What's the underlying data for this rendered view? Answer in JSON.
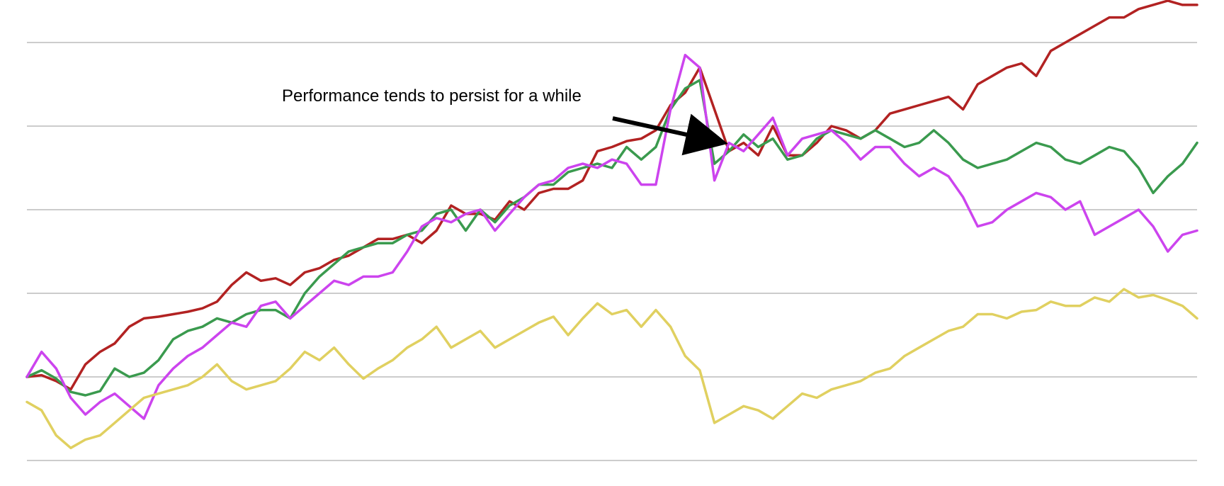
{
  "chart_data": {
    "type": "line",
    "title": "",
    "xlabel": "",
    "ylabel": "",
    "x": [
      0,
      10,
      20,
      30,
      40,
      50,
      60,
      70,
      80,
      90,
      100,
      110,
      120,
      130,
      140,
      150,
      160,
      170,
      180,
      190,
      200,
      210,
      220,
      230,
      240,
      250,
      260,
      270,
      280,
      290,
      300,
      310,
      320,
      330,
      340,
      350,
      360,
      370,
      380,
      390,
      400,
      410,
      420,
      430,
      440,
      450,
      460,
      470,
      480,
      490,
      500,
      510,
      520,
      530,
      540,
      550,
      560,
      570,
      580,
      590,
      600,
      610,
      620,
      630,
      640,
      650,
      660,
      670,
      680,
      690,
      700,
      710,
      720,
      730,
      740,
      750,
      760,
      770,
      780,
      790,
      800
    ],
    "ylim": [
      0,
      5
    ],
    "grid": true,
    "gridlines": [
      0,
      1,
      2,
      3,
      4,
      5
    ],
    "series": [
      {
        "color": "#b22222",
        "values": [
          1.0,
          1.02,
          0.95,
          0.85,
          1.15,
          1.3,
          1.4,
          1.6,
          1.7,
          1.72,
          1.75,
          1.78,
          1.82,
          1.9,
          2.1,
          2.25,
          2.15,
          2.18,
          2.1,
          2.25,
          2.3,
          2.4,
          2.45,
          2.55,
          2.65,
          2.65,
          2.7,
          2.6,
          2.75,
          3.05,
          2.95,
          2.95,
          2.88,
          3.1,
          3.0,
          3.2,
          3.25,
          3.25,
          3.35,
          3.7,
          3.75,
          3.82,
          3.85,
          3.95,
          4.25,
          4.4,
          4.7,
          4.2,
          3.7,
          3.8,
          3.65,
          4.0,
          3.65,
          3.65,
          3.8,
          4.0,
          3.95,
          3.85,
          3.95,
          4.15,
          4.2,
          4.25,
          4.3,
          4.35,
          4.2,
          4.5,
          4.6,
          4.7,
          4.75,
          4.6,
          4.9,
          5.0,
          5.1,
          5.2,
          5.3,
          5.3,
          5.4,
          5.45,
          5.5,
          5.45,
          5.45
        ]
      },
      {
        "color": "#3a9a4e",
        "values": [
          1.0,
          1.08,
          0.98,
          0.82,
          0.78,
          0.83,
          1.1,
          1.0,
          1.05,
          1.2,
          1.45,
          1.55,
          1.6,
          1.7,
          1.65,
          1.75,
          1.8,
          1.8,
          1.7,
          2.0,
          2.2,
          2.35,
          2.5,
          2.55,
          2.6,
          2.6,
          2.7,
          2.75,
          2.95,
          3.0,
          2.75,
          3.0,
          2.85,
          3.05,
          3.15,
          3.3,
          3.3,
          3.45,
          3.5,
          3.55,
          3.5,
          3.75,
          3.6,
          3.75,
          4.2,
          4.45,
          4.55,
          3.55,
          3.7,
          3.9,
          3.75,
          3.85,
          3.6,
          3.65,
          3.85,
          3.95,
          3.9,
          3.85,
          3.95,
          3.85,
          3.75,
          3.8,
          3.95,
          3.8,
          3.6,
          3.5,
          3.55,
          3.6,
          3.7,
          3.8,
          3.75,
          3.6,
          3.55,
          3.65,
          3.75,
          3.7,
          3.5,
          3.2,
          3.4,
          3.55,
          3.8
        ]
      },
      {
        "color": "#cc44ee",
        "values": [
          1.0,
          1.3,
          1.1,
          0.75,
          0.55,
          0.7,
          0.8,
          0.65,
          0.5,
          0.9,
          1.1,
          1.25,
          1.35,
          1.5,
          1.65,
          1.6,
          1.85,
          1.9,
          1.7,
          1.85,
          2.0,
          2.15,
          2.1,
          2.2,
          2.2,
          2.25,
          2.5,
          2.8,
          2.9,
          2.85,
          2.95,
          3.0,
          2.75,
          2.95,
          3.15,
          3.3,
          3.35,
          3.5,
          3.55,
          3.5,
          3.6,
          3.55,
          3.3,
          3.3,
          4.2,
          4.85,
          4.7,
          3.35,
          3.8,
          3.7,
          3.9,
          4.1,
          3.65,
          3.85,
          3.9,
          3.95,
          3.8,
          3.6,
          3.75,
          3.75,
          3.55,
          3.4,
          3.5,
          3.4,
          3.15,
          2.8,
          2.85,
          3.0,
          3.1,
          3.2,
          3.15,
          3.0,
          3.1,
          2.7,
          2.8,
          2.9,
          3.0,
          2.8,
          2.5,
          2.7,
          2.75
        ]
      },
      {
        "color": "#e0d060",
        "values": [
          0.7,
          0.6,
          0.3,
          0.15,
          0.25,
          0.3,
          0.45,
          0.6,
          0.75,
          0.8,
          0.85,
          0.9,
          1.0,
          1.15,
          0.95,
          0.85,
          0.9,
          0.95,
          1.1,
          1.3,
          1.2,
          1.35,
          1.15,
          0.98,
          1.1,
          1.2,
          1.35,
          1.45,
          1.6,
          1.35,
          1.45,
          1.55,
          1.35,
          1.45,
          1.55,
          1.65,
          1.72,
          1.5,
          1.7,
          1.88,
          1.75,
          1.8,
          1.6,
          1.8,
          1.6,
          1.25,
          1.08,
          0.45,
          0.55,
          0.65,
          0.6,
          0.5,
          0.65,
          0.8,
          0.75,
          0.85,
          0.9,
          0.95,
          1.05,
          1.1,
          1.25,
          1.35,
          1.45,
          1.55,
          1.6,
          1.75,
          1.75,
          1.7,
          1.78,
          1.8,
          1.9,
          1.85,
          1.85,
          1.95,
          1.9,
          2.05,
          1.95,
          1.98,
          1.92,
          1.85,
          1.7
        ]
      }
    ],
    "annotations": [
      {
        "text": "Performance tends to persist for a while"
      }
    ]
  }
}
